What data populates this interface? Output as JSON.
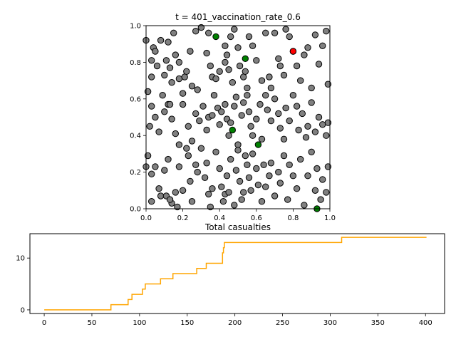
{
  "chart_data": [
    {
      "type": "scatter",
      "title": "t = 401_vaccination_rate_0.6",
      "xlabel": "",
      "ylabel": "",
      "xlim": [
        0,
        1
      ],
      "ylim": [
        0,
        1
      ],
      "x_ticks": [
        "0.0",
        "0.2",
        "0.4",
        "0.6",
        "0.8",
        "1.0"
      ],
      "y_ticks": [
        "0.0",
        "0.2",
        "0.4",
        "0.6",
        "0.8",
        "1.0"
      ],
      "colors": {
        "gray": "#808080",
        "green": "#008000",
        "red": "#ff0000",
        "edge": "#000000"
      },
      "series": [
        {
          "color": "green",
          "points": [
            [
              0.38,
              0.94
            ],
            [
              0.54,
              0.82
            ],
            [
              0.47,
              0.43
            ],
            [
              0.61,
              0.35
            ],
            [
              0.93,
              0.0
            ]
          ]
        },
        {
          "color": "red",
          "points": [
            [
              0.8,
              0.86
            ]
          ]
        },
        {
          "color": "gray",
          "points": [
            [
              0.0,
              0.92
            ],
            [
              0.01,
              0.64
            ],
            [
              0.03,
              0.72
            ],
            [
              0.04,
              0.88
            ],
            [
              0.03,
              0.81
            ],
            [
              0.05,
              0.86
            ],
            [
              0.06,
              0.78
            ],
            [
              0.08,
              0.92
            ],
            [
              0.09,
              0.62
            ],
            [
              0.1,
              0.73
            ],
            [
              0.11,
              0.81
            ],
            [
              0.12,
              0.57
            ],
            [
              0.12,
              0.91
            ],
            [
              0.13,
              0.77
            ],
            [
              0.14,
              0.69
            ],
            [
              0.16,
              0.84
            ],
            [
              0.15,
              0.96
            ],
            [
              0.18,
              0.8
            ],
            [
              0.18,
              0.71
            ],
            [
              0.2,
              0.57
            ],
            [
              0.21,
              0.72
            ],
            [
              0.22,
              0.75
            ],
            [
              0.24,
              0.86
            ],
            [
              0.25,
              0.67
            ],
            [
              0.27,
              0.97
            ],
            [
              0.28,
              0.65
            ],
            [
              0.3,
              0.99
            ],
            [
              0.33,
              0.85
            ],
            [
              0.34,
              0.96
            ],
            [
              0.35,
              0.78
            ],
            [
              0.36,
              0.72
            ],
            [
              0.38,
              0.71
            ],
            [
              0.4,
              0.75
            ],
            [
              0.43,
              0.89
            ],
            [
              0.43,
              0.8
            ],
            [
              0.44,
              0.84
            ],
            [
              0.45,
              0.76
            ],
            [
              0.46,
              0.94
            ],
            [
              0.48,
              0.98
            ],
            [
              0.47,
              0.69
            ],
            [
              0.5,
              0.88
            ],
            [
              0.51,
              0.78
            ],
            [
              0.53,
              0.72
            ],
            [
              0.54,
              0.75
            ],
            [
              0.55,
              0.66
            ],
            [
              0.56,
              0.94
            ],
            [
              0.58,
              0.89
            ],
            [
              0.6,
              0.81
            ],
            [
              0.63,
              0.7
            ],
            [
              0.65,
              0.96
            ],
            [
              0.67,
              0.72
            ],
            [
              0.68,
              0.66
            ],
            [
              0.7,
              0.96
            ],
            [
              0.72,
              0.82
            ],
            [
              0.73,
              0.78
            ],
            [
              0.75,
              0.73
            ],
            [
              0.76,
              0.98
            ],
            [
              0.78,
              0.94
            ],
            [
              0.8,
              0.86
            ],
            [
              0.82,
              0.78
            ],
            [
              0.84,
              0.7
            ],
            [
              0.86,
              0.84
            ],
            [
              0.88,
              0.88
            ],
            [
              0.9,
              0.66
            ],
            [
              0.92,
              0.95
            ],
            [
              0.94,
              0.79
            ],
            [
              0.96,
              0.89
            ],
            [
              0.98,
              0.97
            ],
            [
              0.99,
              0.68
            ],
            [
              0.02,
              0.45
            ],
            [
              0.03,
              0.56
            ],
            [
              0.05,
              0.5
            ],
            [
              0.07,
              0.42
            ],
            [
              0.1,
              0.53
            ],
            [
              0.13,
              0.57
            ],
            [
              0.14,
              0.49
            ],
            [
              0.16,
              0.41
            ],
            [
              0.18,
              0.35
            ],
            [
              0.2,
              0.63
            ],
            [
              0.23,
              0.45
            ],
            [
              0.25,
              0.37
            ],
            [
              0.27,
              0.52
            ],
            [
              0.29,
              0.48
            ],
            [
              0.31,
              0.56
            ],
            [
              0.33,
              0.43
            ],
            [
              0.34,
              0.5
            ],
            [
              0.36,
              0.51
            ],
            [
              0.37,
              0.62
            ],
            [
              0.39,
              0.55
            ],
            [
              0.4,
              0.46
            ],
            [
              0.41,
              0.53
            ],
            [
              0.43,
              0.57
            ],
            [
              0.44,
              0.49
            ],
            [
              0.45,
              0.4
            ],
            [
              0.46,
              0.47
            ],
            [
              0.48,
              0.56
            ],
            [
              0.49,
              0.61
            ],
            [
              0.5,
              0.35
            ],
            [
              0.52,
              0.51
            ],
            [
              0.53,
              0.58
            ],
            [
              0.55,
              0.62
            ],
            [
              0.56,
              0.53
            ],
            [
              0.57,
              0.45
            ],
            [
              0.58,
              0.4
            ],
            [
              0.6,
              0.49
            ],
            [
              0.62,
              0.57
            ],
            [
              0.63,
              0.38
            ],
            [
              0.65,
              0.62
            ],
            [
              0.66,
              0.54
            ],
            [
              0.68,
              0.48
            ],
            [
              0.7,
              0.6
            ],
            [
              0.72,
              0.52
            ],
            [
              0.73,
              0.44
            ],
            [
              0.75,
              0.38
            ],
            [
              0.76,
              0.55
            ],
            [
              0.78,
              0.48
            ],
            [
              0.8,
              0.62
            ],
            [
              0.82,
              0.56
            ],
            [
              0.83,
              0.43
            ],
            [
              0.85,
              0.52
            ],
            [
              0.87,
              0.39
            ],
            [
              0.88,
              0.45
            ],
            [
              0.9,
              0.58
            ],
            [
              0.92,
              0.42
            ],
            [
              0.94,
              0.5
            ],
            [
              0.96,
              0.46
            ],
            [
              0.98,
              0.4
            ],
            [
              0.99,
              0.47
            ],
            [
              0.0,
              0.23
            ],
            [
              0.01,
              0.29
            ],
            [
              0.03,
              0.19
            ],
            [
              0.05,
              0.23
            ],
            [
              0.07,
              0.11
            ],
            [
              0.08,
              0.07
            ],
            [
              0.1,
              0.21
            ],
            [
              0.12,
              0.27
            ],
            [
              0.14,
              0.03
            ],
            [
              0.16,
              0.09
            ],
            [
              0.18,
              0.23
            ],
            [
              0.2,
              0.1
            ],
            [
              0.22,
              0.33
            ],
            [
              0.23,
              0.29
            ],
            [
              0.24,
              0.15
            ],
            [
              0.25,
              0.04
            ],
            [
              0.27,
              0.24
            ],
            [
              0.28,
              0.2
            ],
            [
              0.3,
              0.33
            ],
            [
              0.32,
              0.17
            ],
            [
              0.33,
              0.25
            ],
            [
              0.34,
              0.08
            ],
            [
              0.35,
              0.01
            ],
            [
              0.36,
              0.11
            ],
            [
              0.38,
              0.31
            ],
            [
              0.4,
              0.22
            ],
            [
              0.41,
              0.12
            ],
            [
              0.42,
              0.04
            ],
            [
              0.43,
              0.08
            ],
            [
              0.44,
              0.18
            ],
            [
              0.45,
              0.09
            ],
            [
              0.46,
              0.27
            ],
            [
              0.48,
              0.02
            ],
            [
              0.49,
              0.21
            ],
            [
              0.5,
              0.32
            ],
            [
              0.51,
              0.15
            ],
            [
              0.52,
              0.05
            ],
            [
              0.53,
              0.09
            ],
            [
              0.54,
              0.29
            ],
            [
              0.55,
              0.24
            ],
            [
              0.56,
              0.17
            ],
            [
              0.57,
              0.1
            ],
            [
              0.58,
              0.3
            ],
            [
              0.6,
              0.22
            ],
            [
              0.61,
              0.13
            ],
            [
              0.63,
              0.04
            ],
            [
              0.64,
              0.24
            ],
            [
              0.65,
              0.12
            ],
            [
              0.67,
              0.18
            ],
            [
              0.68,
              0.25
            ],
            [
              0.7,
              0.07
            ],
            [
              0.72,
              0.2
            ],
            [
              0.73,
              0.14
            ],
            [
              0.75,
              0.29
            ],
            [
              0.77,
              0.05
            ],
            [
              0.78,
              0.24
            ],
            [
              0.8,
              0.18
            ],
            [
              0.82,
              0.11
            ],
            [
              0.84,
              0.27
            ],
            [
              0.86,
              0.02
            ],
            [
              0.88,
              0.18
            ],
            [
              0.9,
              0.31
            ],
            [
              0.92,
              0.1
            ],
            [
              0.93,
              0.22
            ],
            [
              0.95,
              0.05
            ],
            [
              0.96,
              0.16
            ],
            [
              0.98,
              0.09
            ],
            [
              0.99,
              0.23
            ],
            [
              0.11,
              0.07
            ],
            [
              0.13,
              0.05
            ],
            [
              0.17,
              0.01
            ],
            [
              0.03,
              0.04
            ]
          ]
        }
      ]
    },
    {
      "type": "line",
      "title": "Total casualties",
      "xlabel": "",
      "ylabel": "",
      "xlim": [
        -15,
        420
      ],
      "ylim": [
        -0.7,
        14.7
      ],
      "x_ticks": [
        "0",
        "50",
        "100",
        "150",
        "200",
        "250",
        "300",
        "350",
        "400"
      ],
      "y_ticks": [
        "0",
        "10"
      ],
      "step": true,
      "color": "#ffa500",
      "x": [
        0,
        70,
        88,
        92,
        100,
        103,
        106,
        122,
        135,
        160,
        165,
        170,
        187,
        188,
        189,
        190,
        312,
        401
      ],
      "y": [
        0,
        1,
        2,
        3,
        3,
        4,
        5,
        6,
        7,
        8,
        8,
        9,
        11,
        12,
        13,
        13,
        14,
        14
      ]
    }
  ]
}
